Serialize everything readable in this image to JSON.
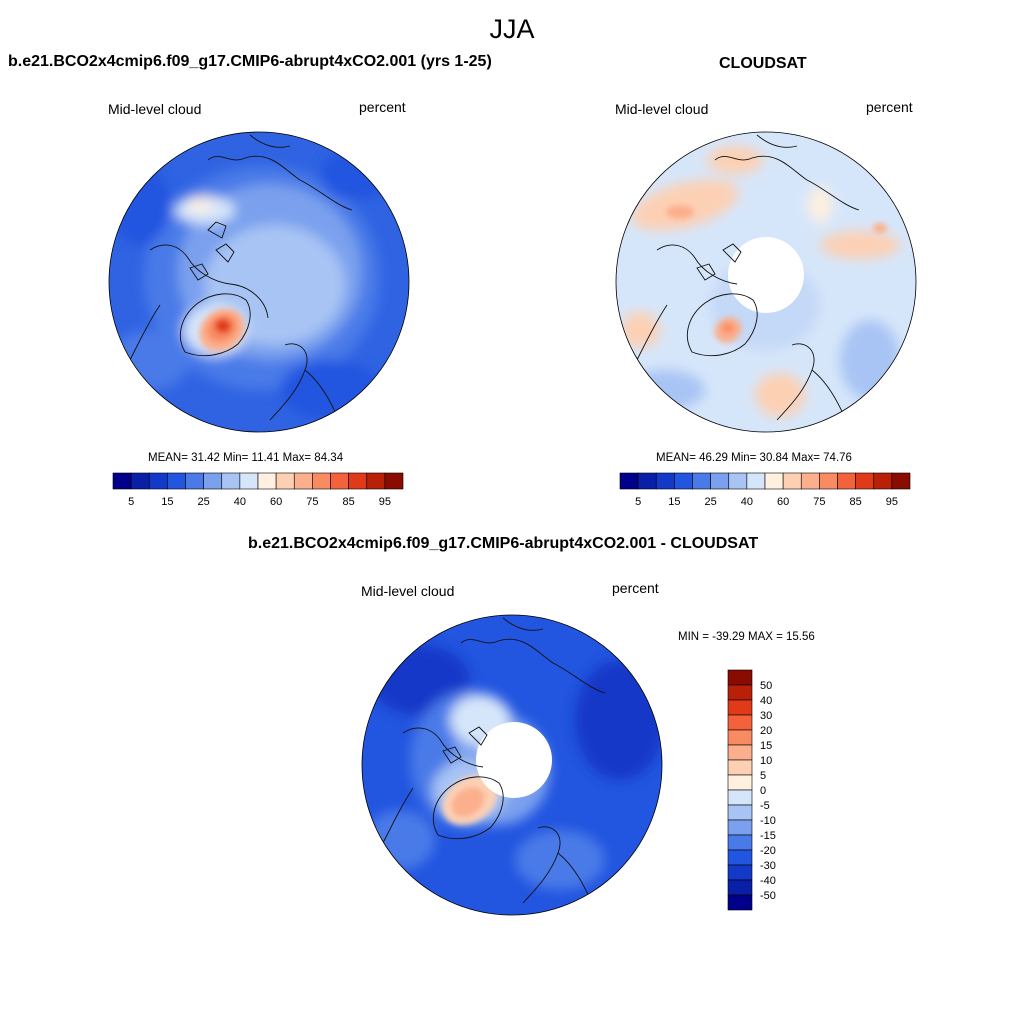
{
  "page": {
    "title": "JJA"
  },
  "panels": [
    {
      "title": "b.e21.BCO2x4cmip6.f09_g17.CMIP6-abrupt4xCO2.001 (yrs 1-25)",
      "left_label": "Mid-level cloud",
      "right_label": "percent",
      "stats": "MEAN=  31.42  Min=  11.41  Max=  84.34"
    },
    {
      "title": "CLOUDSAT",
      "left_label": "Mid-level cloud",
      "right_label": "percent",
      "stats": "MEAN=  46.29  Min=  30.84  Max=  74.76"
    },
    {
      "title": "b.e21.BCO2x4cmip6.f09_g17.CMIP6-abrupt4xCO2.001 - CLOUDSAT",
      "left_label": "Mid-level cloud",
      "right_label": "percent",
      "stats": "MIN = -39.29 MAX =  15.56"
    }
  ],
  "colorbar_abs": {
    "colors": [
      "#00008b",
      "#0a1fa8",
      "#1339c8",
      "#2255e0",
      "#4a7ae8",
      "#7aa0ee",
      "#a8c4f4",
      "#d6e6fa",
      "#fff0e0",
      "#fdd0b4",
      "#fbaf8c",
      "#f98b62",
      "#f4623c",
      "#e03a18",
      "#b82008",
      "#8a0c00"
    ],
    "labels": [
      "5",
      "15",
      "25",
      "40",
      "60",
      "75",
      "85",
      "95"
    ]
  },
  "colorbar_diff": {
    "colors": [
      "#8a0c00",
      "#b82008",
      "#e03a18",
      "#f4623c",
      "#f98b62",
      "#fbaf8c",
      "#fdd0b4",
      "#fff0e0",
      "#d6e6fa",
      "#a8c4f4",
      "#7aa0ee",
      "#4a7ae8",
      "#2255e0",
      "#1339c8",
      "#0a1fa8",
      "#00008b"
    ],
    "labels": [
      "50",
      "40",
      "30",
      "20",
      "15",
      "10",
      "5",
      "0",
      "-5",
      "-10",
      "-15",
      "-20",
      "-30",
      "-40",
      "-50"
    ]
  }
}
